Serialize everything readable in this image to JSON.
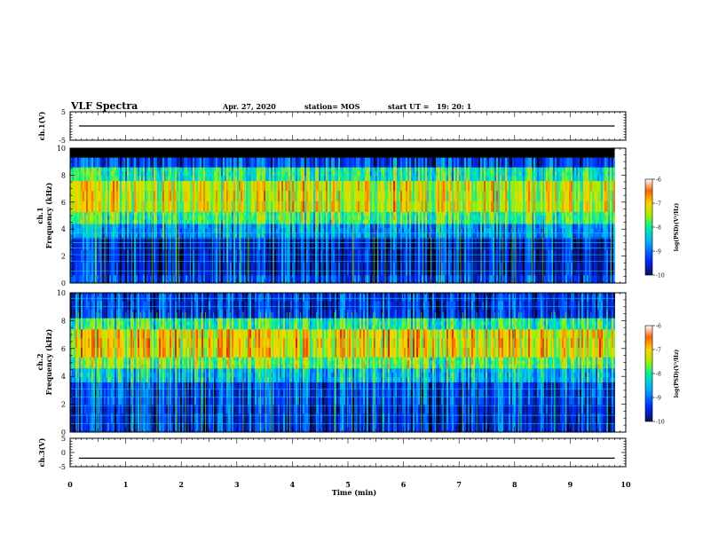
{
  "header": {
    "title": "VLF Spectra",
    "date": "Apr. 27, 2020",
    "station": "station= MOS",
    "start_ut": "start UT =   19: 20: 1"
  },
  "chart_data": [
    {
      "type": "line",
      "panel": "ch1-waveform",
      "ylabel": "ch.1(V)",
      "ylim": [
        -5,
        5
      ],
      "yticks": [
        "5",
        "-5"
      ],
      "x": [
        0,
        9.8
      ],
      "series": [
        {
          "values": [
            0,
            0
          ]
        }
      ]
    },
    {
      "type": "heatmap",
      "panel": "ch1-spectrogram",
      "ylabel": "ch.1",
      "ylabel2": "Frequency (kHz)",
      "ylim": [
        0,
        10
      ],
      "yticks": [
        "0",
        "2",
        "4",
        "6",
        "8",
        "10"
      ],
      "xlim": [
        0,
        10
      ],
      "data_end_min": 9.8,
      "colorbar": {
        "label": "log(PSD)(V²/Hz)",
        "range": [
          -10,
          -6
        ],
        "ticks": [
          "-6",
          "-7",
          "-8",
          "-9",
          "-10"
        ]
      },
      "bands_khz": [
        {
          "from": 0,
          "to": 0.6,
          "level": -9.3
        },
        {
          "from": 0.6,
          "to": 3.4,
          "level": -9.6
        },
        {
          "from": 3.4,
          "to": 4.4,
          "level": -8.8
        },
        {
          "from": 4.4,
          "to": 5.3,
          "level": -7.9
        },
        {
          "from": 5.3,
          "to": 7.6,
          "level": -7.3
        },
        {
          "from": 7.6,
          "to": 8.6,
          "level": -8.1
        },
        {
          "from": 8.6,
          "to": 9.3,
          "level": -9.3
        },
        {
          "from": 9.3,
          "to": 10,
          "level": -11
        }
      ]
    },
    {
      "type": "heatmap",
      "panel": "ch2-spectrogram",
      "ylabel": "ch.2",
      "ylabel2": "Frequency (kHz)",
      "ylim": [
        0,
        10
      ],
      "yticks": [
        "0",
        "2",
        "4",
        "6",
        "8",
        "10"
      ],
      "xlim": [
        0,
        10
      ],
      "data_end_min": 9.8,
      "colorbar": {
        "label": "log(PSD)(V²/Hz)",
        "range": [
          -10,
          -6
        ],
        "ticks": [
          "-6",
          "-7",
          "-8",
          "-9",
          "-10"
        ]
      },
      "bands_khz": [
        {
          "from": 0,
          "to": 2.0,
          "level": -9.5
        },
        {
          "from": 2.0,
          "to": 3.6,
          "level": -9.3
        },
        {
          "from": 3.6,
          "to": 4.6,
          "level": -8.5
        },
        {
          "from": 4.6,
          "to": 5.4,
          "level": -7.7
        },
        {
          "from": 5.4,
          "to": 7.4,
          "level": -7.1
        },
        {
          "from": 7.4,
          "to": 8.2,
          "level": -8.0
        },
        {
          "from": 8.2,
          "to": 10,
          "level": -9.4
        }
      ]
    },
    {
      "type": "line",
      "panel": "ch3-waveform",
      "ylabel": "ch.3(V)",
      "ylim": [
        -5,
        5
      ],
      "yticks": [
        "5",
        "0",
        "-5"
      ],
      "xlabel": "Time (min)",
      "xlim": [
        0,
        10
      ],
      "xticks": [
        "0",
        "1",
        "2",
        "3",
        "4",
        "5",
        "6",
        "7",
        "8",
        "9",
        "10"
      ],
      "x": [
        0,
        10
      ],
      "series": [
        {
          "values": [
            -2,
            -2
          ]
        }
      ]
    }
  ],
  "colors": {
    "frame": "#000000",
    "background": "#ffffff",
    "scale": [
      "#000000",
      "#08105a",
      "#0028ff",
      "#00b4ff",
      "#00f0a0",
      "#a0f000",
      "#ffd200",
      "#ff6400",
      "#e00000"
    ]
  }
}
